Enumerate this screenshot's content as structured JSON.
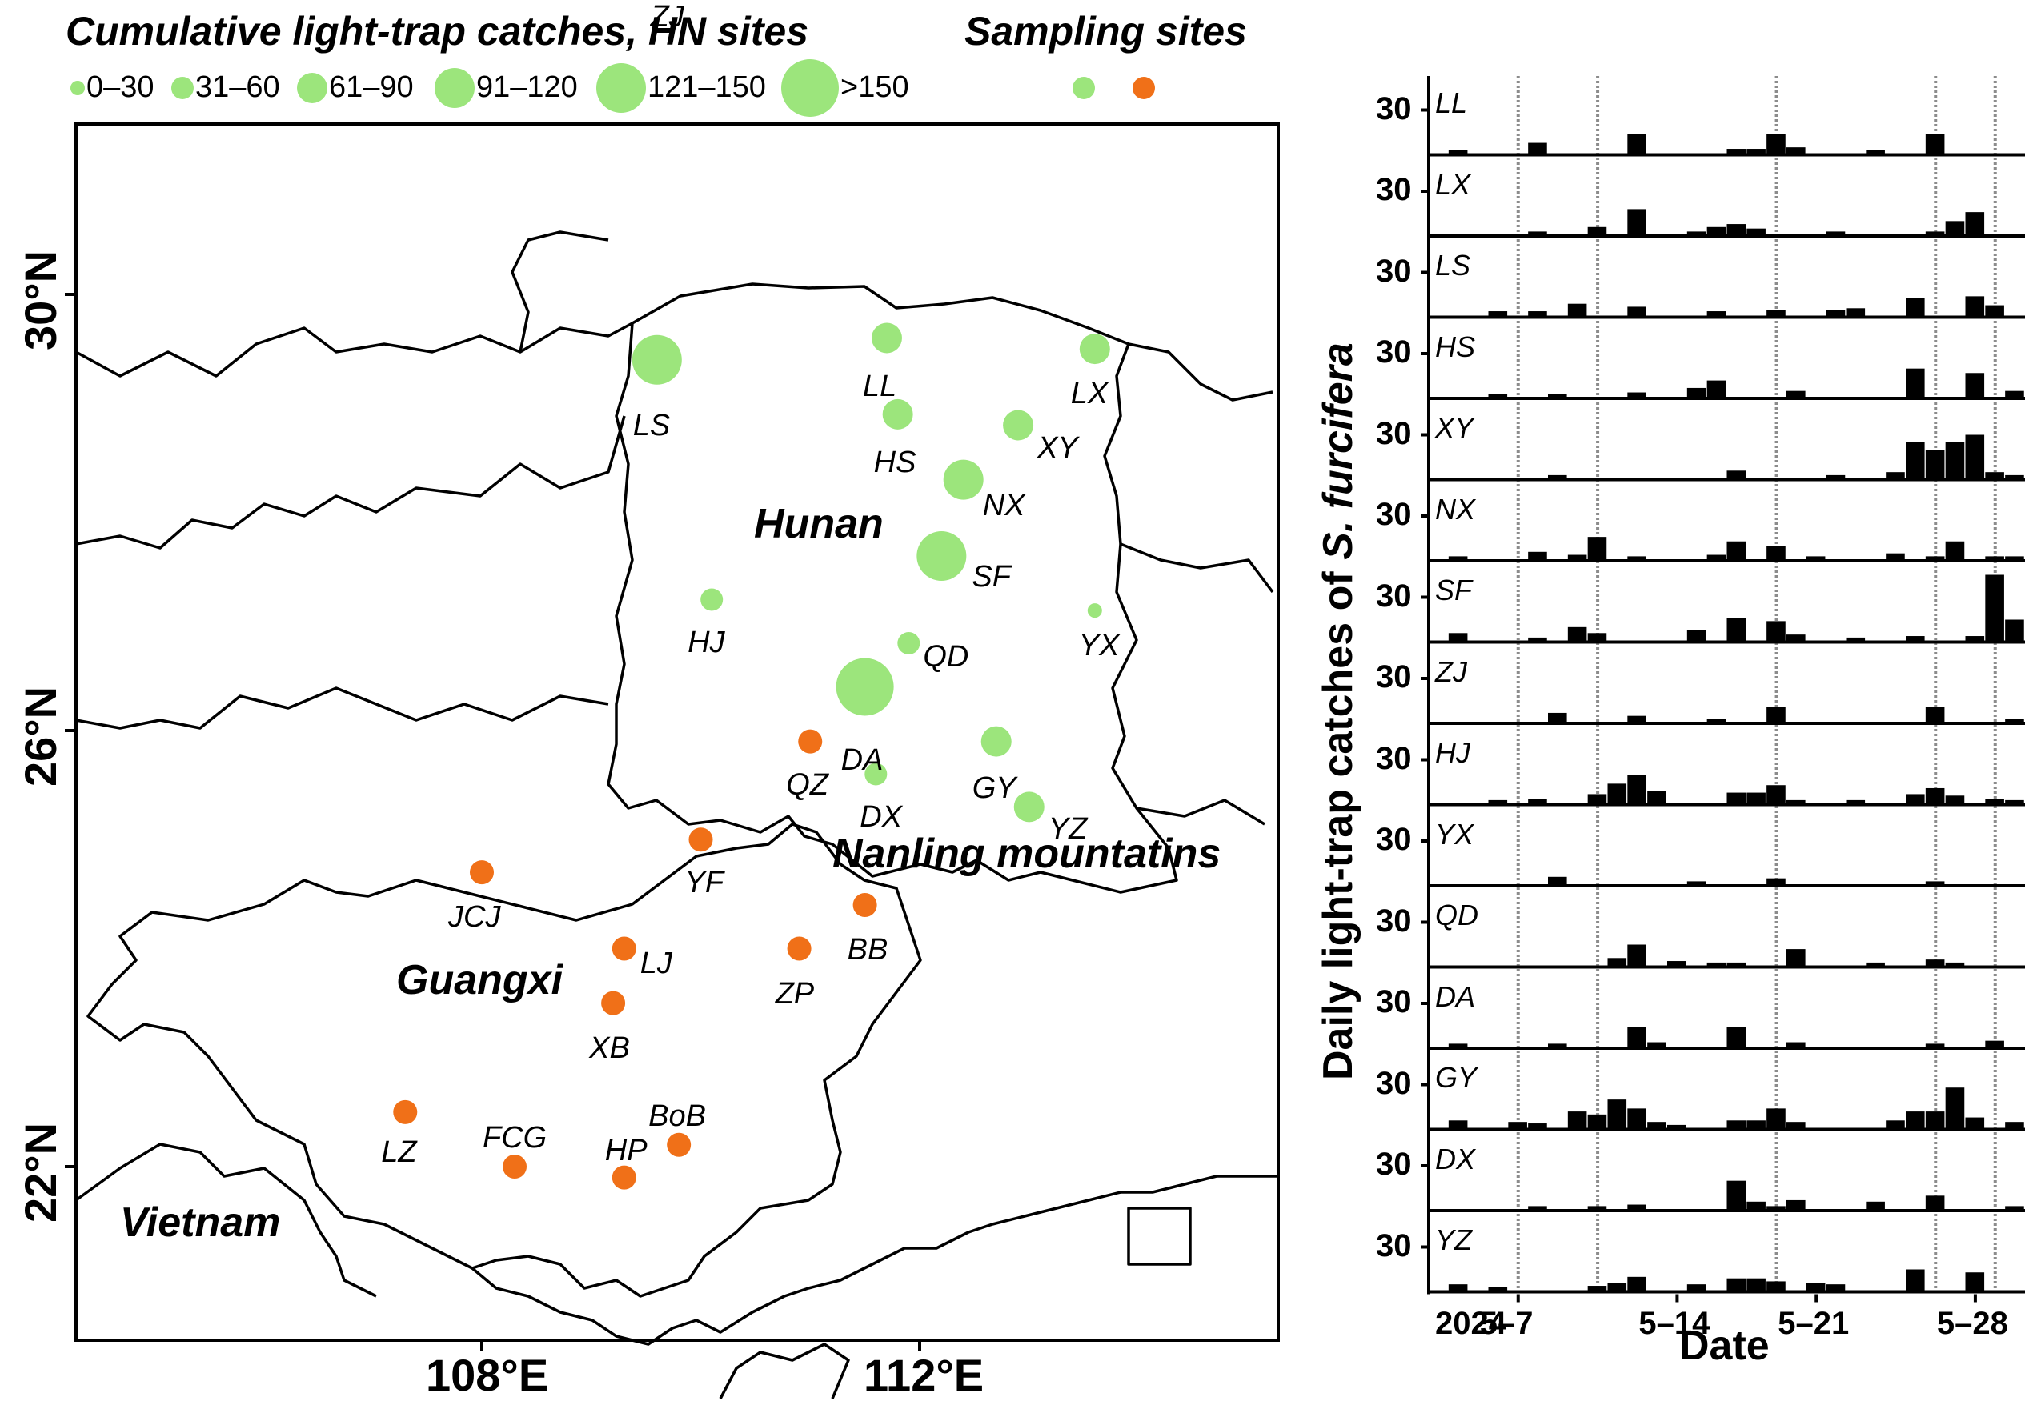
{
  "colors": {
    "hn_site": "#9CE57C",
    "gx_site": "#F07018",
    "bar": "#000000",
    "border": "#000000",
    "date_guide": "#8c8c8c"
  },
  "map": {
    "legend": {
      "catches_title": "Cumulative light-trap catches, HN sites",
      "sites_title": "Sampling sites",
      "size_classes": [
        "0–30",
        "31–60",
        "61–90",
        "91–120",
        "121–150",
        ">150"
      ]
    },
    "axes": {
      "lat_ticks": [
        "30°N",
        "26°N",
        "22°N"
      ],
      "lon_ticks": [
        "108°E",
        "112°E"
      ]
    },
    "regions": {
      "hunan": "Hunan",
      "guangxi": "Guangxi",
      "vietnam": "Vietnam",
      "nanling": "Nanling mountatins"
    },
    "sites": [
      {
        "id": "LS",
        "label": "LS",
        "group": "HN",
        "size_class": 4,
        "lon": 109.6,
        "lat": 29.4
      },
      {
        "id": "LL",
        "label": "LL",
        "group": "HN",
        "size_class": 2,
        "lon": 111.7,
        "lat": 29.6
      },
      {
        "id": "LX",
        "label": "LX",
        "group": "HN",
        "size_class": 2,
        "lon": 113.6,
        "lat": 29.5
      },
      {
        "id": "HS",
        "label": "HS",
        "group": "HN",
        "size_class": 2,
        "lon": 111.8,
        "lat": 28.9
      },
      {
        "id": "XY",
        "label": "XY",
        "group": "HN",
        "size_class": 2,
        "lon": 112.9,
        "lat": 28.8
      },
      {
        "id": "NX",
        "label": "NX",
        "group": "HN",
        "size_class": 3,
        "lon": 112.4,
        "lat": 28.3
      },
      {
        "id": "ZJ",
        "label": "ZJ",
        "group": "HN",
        "size_class": 6,
        "lon": 109.7,
        "lat": 27.5
      },
      {
        "id": "HJ",
        "label": "HJ",
        "group": "HN",
        "size_class": 1,
        "lon": 110.1,
        "lat": 27.2
      },
      {
        "id": "SF",
        "label": "SF",
        "group": "HN",
        "size_class": 4,
        "lon": 112.2,
        "lat": 27.6
      },
      {
        "id": "YX",
        "label": "YX",
        "group": "HN",
        "size_class": 0,
        "lon": 113.6,
        "lat": 27.1
      },
      {
        "id": "QD",
        "label": "QD",
        "group": "HN",
        "size_class": 1,
        "lon": 111.9,
        "lat": 26.8
      },
      {
        "id": "DA",
        "label": "DA",
        "group": "HN",
        "size_class": 5,
        "lon": 111.5,
        "lat": 26.4
      },
      {
        "id": "GY",
        "label": "GY",
        "group": "HN",
        "size_class": 2,
        "lon": 112.7,
        "lat": 25.9
      },
      {
        "id": "DX",
        "label": "DX",
        "group": "HN",
        "size_class": 1,
        "lon": 111.6,
        "lat": 25.6
      },
      {
        "id": "YZ",
        "label": "YZ",
        "group": "HN",
        "size_class": 2,
        "lon": 113.0,
        "lat": 25.3
      },
      {
        "id": "QZ",
        "label": "QZ",
        "group": "GX",
        "lon": 111.0,
        "lat": 25.9
      },
      {
        "id": "YF",
        "label": "YF",
        "group": "GX",
        "lon": 110.0,
        "lat": 25.0
      },
      {
        "id": "JCJ",
        "label": "JCJ",
        "group": "GX",
        "lon": 108.0,
        "lat": 24.7
      },
      {
        "id": "BB",
        "label": "BB",
        "group": "GX",
        "lon": 111.5,
        "lat": 24.4
      },
      {
        "id": "LJ",
        "label": "LJ",
        "group": "GX",
        "lon": 109.3,
        "lat": 24.0
      },
      {
        "id": "ZP",
        "label": "ZP",
        "group": "GX",
        "lon": 110.9,
        "lat": 24.0
      },
      {
        "id": "XB",
        "label": "XB",
        "group": "GX",
        "lon": 109.2,
        "lat": 23.5
      },
      {
        "id": "LZ",
        "label": "LZ",
        "group": "GX",
        "lon": 107.3,
        "lat": 22.5
      },
      {
        "id": "FCG",
        "label": "FCG",
        "group": "GX",
        "lon": 108.3,
        "lat": 22.0
      },
      {
        "id": "HP",
        "label": "HP",
        "group": "GX",
        "lon": 109.3,
        "lat": 21.9
      },
      {
        "id": "BoB",
        "label": "BoB",
        "group": "GX",
        "lon": 109.8,
        "lat": 22.2
      }
    ]
  },
  "chart_data": {
    "type": "bar",
    "title": "",
    "ylabel": "Daily light-trap catches of S. furcifera",
    "ylabel_parts": [
      "Daily light-trap catches of ",
      "S. furcifera"
    ],
    "xlabel": "Date",
    "x_tick_labels": [
      "2024",
      "5–7",
      "5–14",
      "5–21",
      "5–28"
    ],
    "x_days": [
      "5-2",
      "5-3",
      "5-4",
      "5-5",
      "5-6",
      "5-7",
      "5-8",
      "5-9",
      "5-10",
      "5-11",
      "5-12",
      "5-13",
      "5-14",
      "5-15",
      "5-16",
      "5-17",
      "5-18",
      "5-19",
      "5-20",
      "5-21",
      "5-22",
      "5-23",
      "5-24",
      "5-25",
      "5-26",
      "5-27",
      "5-28",
      "5-29",
      "5-30",
      "5-31"
    ],
    "guide_day_indices": [
      4,
      8,
      17,
      25,
      28
    ],
    "panel_ytick": "30",
    "ylim": [
      0,
      60
    ],
    "series": [
      {
        "name": "LL",
        "values": [
          0,
          3,
          0,
          0,
          0,
          8,
          0,
          0,
          0,
          0,
          14,
          0,
          0,
          0,
          0,
          4,
          4,
          14,
          5,
          0,
          0,
          0,
          3,
          0,
          0,
          14,
          0,
          0,
          0,
          0
        ]
      },
      {
        "name": "LX",
        "values": [
          0,
          0,
          0,
          0,
          0,
          3,
          0,
          0,
          6,
          0,
          18,
          0,
          0,
          3,
          6,
          8,
          5,
          0,
          0,
          0,
          3,
          0,
          0,
          0,
          0,
          3,
          10,
          16,
          0,
          0
        ]
      },
      {
        "name": "LS",
        "values": [
          0,
          0,
          0,
          4,
          0,
          4,
          0,
          9,
          0,
          0,
          7,
          0,
          0,
          0,
          4,
          0,
          0,
          5,
          0,
          0,
          5,
          6,
          0,
          0,
          13,
          0,
          0,
          14,
          8,
          0
        ]
      },
      {
        "name": "HS",
        "values": [
          0,
          0,
          0,
          3,
          0,
          0,
          3,
          0,
          0,
          0,
          4,
          0,
          0,
          7,
          12,
          0,
          0,
          0,
          5,
          0,
          0,
          0,
          0,
          0,
          20,
          0,
          0,
          17,
          0,
          5
        ]
      },
      {
        "name": "XY",
        "values": [
          0,
          0,
          0,
          0,
          0,
          0,
          3,
          0,
          0,
          0,
          0,
          0,
          0,
          0,
          0,
          6,
          0,
          0,
          0,
          0,
          3,
          0,
          0,
          5,
          25,
          20,
          25,
          30,
          5,
          3
        ]
      },
      {
        "name": "NX",
        "values": [
          0,
          3,
          0,
          0,
          0,
          6,
          0,
          4,
          16,
          0,
          3,
          0,
          0,
          0,
          4,
          13,
          0,
          10,
          0,
          3,
          0,
          0,
          0,
          5,
          0,
          3,
          13,
          0,
          3,
          3
        ]
      },
      {
        "name": "SF",
        "values": [
          0,
          6,
          0,
          0,
          0,
          3,
          0,
          10,
          6,
          0,
          0,
          0,
          0,
          8,
          0,
          16,
          0,
          14,
          5,
          0,
          0,
          3,
          0,
          0,
          4,
          0,
          0,
          4,
          45,
          15
        ]
      },
      {
        "name": "ZJ",
        "values": [
          0,
          0,
          0,
          0,
          0,
          0,
          7,
          0,
          0,
          0,
          5,
          0,
          0,
          0,
          3,
          0,
          0,
          11,
          0,
          0,
          0,
          0,
          0,
          0,
          0,
          11,
          0,
          0,
          0,
          3
        ]
      },
      {
        "name": "HJ",
        "values": [
          0,
          0,
          0,
          3,
          0,
          4,
          0,
          0,
          7,
          14,
          20,
          9,
          0,
          0,
          0,
          8,
          8,
          13,
          3,
          0,
          0,
          3,
          0,
          0,
          7,
          11,
          6,
          0,
          4,
          3
        ]
      },
      {
        "name": "YX",
        "values": [
          0,
          0,
          0,
          0,
          0,
          0,
          6,
          0,
          0,
          0,
          0,
          0,
          0,
          3,
          0,
          0,
          0,
          5,
          0,
          0,
          0,
          0,
          0,
          0,
          0,
          3,
          0,
          0,
          0,
          0
        ]
      },
      {
        "name": "QD",
        "values": [
          0,
          0,
          0,
          0,
          0,
          0,
          0,
          0,
          0,
          6,
          15,
          0,
          4,
          0,
          3,
          3,
          0,
          0,
          12,
          0,
          0,
          0,
          3,
          0,
          0,
          5,
          3,
          0,
          0,
          0
        ]
      },
      {
        "name": "DA",
        "values": [
          0,
          3,
          0,
          0,
          0,
          0,
          3,
          0,
          0,
          0,
          14,
          4,
          0,
          0,
          0,
          14,
          0,
          0,
          4,
          0,
          0,
          0,
          0,
          0,
          0,
          3,
          0,
          0,
          5,
          0
        ]
      },
      {
        "name": "GY",
        "values": [
          0,
          6,
          0,
          0,
          5,
          4,
          0,
          12,
          10,
          20,
          14,
          5,
          3,
          0,
          0,
          6,
          6,
          14,
          5,
          0,
          0,
          0,
          0,
          6,
          12,
          12,
          28,
          8,
          0,
          5
        ]
      },
      {
        "name": "DX",
        "values": [
          0,
          0,
          0,
          0,
          0,
          3,
          0,
          0,
          3,
          0,
          4,
          0,
          0,
          0,
          0,
          20,
          6,
          3,
          7,
          0,
          0,
          0,
          6,
          0,
          0,
          10,
          0,
          0,
          0,
          3
        ]
      },
      {
        "name": "YZ",
        "values": [
          0,
          5,
          0,
          3,
          0,
          0,
          0,
          0,
          4,
          6,
          10,
          0,
          0,
          5,
          0,
          9,
          9,
          7,
          0,
          6,
          5,
          0,
          0,
          0,
          15,
          0,
          0,
          13,
          0,
          0
        ]
      }
    ]
  }
}
